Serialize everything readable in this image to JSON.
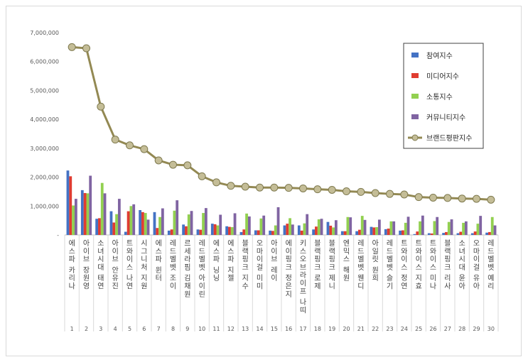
{
  "chart_data": {
    "type": "bar",
    "title": "",
    "xlabel": "",
    "ylabel": "",
    "ylim": [
      0,
      7000000
    ],
    "yticks": [
      "-",
      "1,000,000",
      "2,000,000",
      "3,000,000",
      "4,000,000",
      "5,000,000",
      "6,000,000",
      "7,000,000"
    ],
    "grid": false,
    "legend_position": "top-right",
    "numbers": [
      "1",
      "2",
      "3",
      "4",
      "5",
      "6",
      "7",
      "8",
      "9",
      "10",
      "11",
      "12",
      "13",
      "14",
      "15",
      "16",
      "17",
      "18",
      "19",
      "20",
      "21",
      "22",
      "23",
      "24",
      "25",
      "26",
      "27",
      "28",
      "29",
      "30"
    ],
    "categories": [
      "에스파 카리나",
      "아이브 장원영",
      "소녀시대 태연",
      "아이브 안유진",
      "트와이스 나연",
      "시그니처 지원",
      "에스파 윈터",
      "레드벨벳 조이",
      "르세라핌 김채원",
      "레드벨벳 아이린",
      "에스파 닝닝",
      "에스파 지젤",
      "블랙핑크 지수",
      "오마이걸 미미",
      "아이브 레이",
      "에이핑크 정은지",
      "키스오브라이프 나띠",
      "블랙핑크 로제",
      "블랙핑크 제니",
      "엔믹스 해원",
      "레드벨벳 웬디",
      "아일릿 원희",
      "레드벨벳 슬기",
      "트와이스 정연",
      "트와이스 지효",
      "트와이스 미나",
      "블랙핑크 리사",
      "소녀시대 윤아",
      "오마이걸 유아",
      "레드벨벳 예리"
    ],
    "series": [
      {
        "name": "참여지수",
        "type": "bar",
        "color": "#4472c4",
        "values": [
          2230000,
          1550000,
          560000,
          820000,
          110000,
          860000,
          790000,
          150000,
          360000,
          190000,
          390000,
          300000,
          100000,
          160000,
          150000,
          330000,
          330000,
          190000,
          450000,
          130000,
          130000,
          280000,
          200000,
          150000,
          30000,
          60000,
          70000,
          60000,
          60000,
          80000
        ]
      },
      {
        "name": "미디어지수",
        "type": "bar",
        "color": "#e03c31",
        "values": [
          2030000,
          1450000,
          580000,
          430000,
          820000,
          790000,
          240000,
          190000,
          300000,
          180000,
          370000,
          280000,
          190000,
          160000,
          140000,
          390000,
          150000,
          290000,
          320000,
          130000,
          180000,
          260000,
          220000,
          160000,
          120000,
          50000,
          100000,
          110000,
          120000,
          100000
        ]
      },
      {
        "name": "소통지수",
        "type": "bar",
        "color": "#92d050",
        "values": [
          1020000,
          1440000,
          1800000,
          720000,
          1000000,
          760000,
          620000,
          840000,
          710000,
          760000,
          330000,
          270000,
          740000,
          570000,
          330000,
          580000,
          400000,
          540000,
          260000,
          620000,
          660000,
          270000,
          470000,
          420000,
          470000,
          480000,
          450000,
          420000,
          390000,
          620000
        ]
      },
      {
        "name": "커뮤니티지수",
        "type": "bar",
        "color": "#8064a2",
        "values": [
          1250000,
          2050000,
          1440000,
          1250000,
          1060000,
          530000,
          920000,
          1200000,
          830000,
          930000,
          700000,
          750000,
          640000,
          670000,
          960000,
          360000,
          720000,
          560000,
          510000,
          610000,
          520000,
          530000,
          470000,
          630000,
          670000,
          620000,
          540000,
          470000,
          660000,
          330000
        ]
      },
      {
        "name": "브랜드평판지수",
        "type": "line",
        "color": "#938953",
        "values": [
          6500000,
          6460000,
          4440000,
          3300000,
          3100000,
          2970000,
          2580000,
          2430000,
          2410000,
          2030000,
          1820000,
          1700000,
          1670000,
          1640000,
          1640000,
          1630000,
          1610000,
          1580000,
          1560000,
          1510000,
          1490000,
          1450000,
          1420000,
          1400000,
          1310000,
          1290000,
          1280000,
          1260000,
          1250000,
          1220000
        ]
      }
    ]
  }
}
